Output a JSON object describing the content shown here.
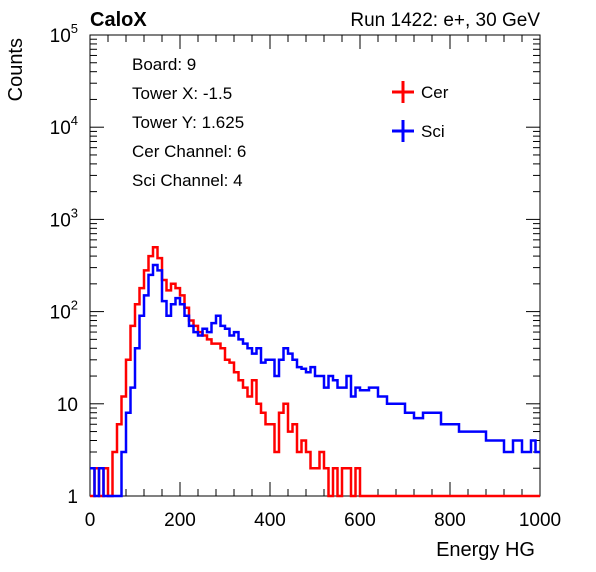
{
  "header": {
    "brand": "CaloX",
    "run": "Run 1422: e+, 30 GeV"
  },
  "info": {
    "lines": [
      "Board: 9",
      "Tower X: -1.5",
      "Tower Y: 1.625",
      "Cer Channel: 6",
      "Sci Channel: 4"
    ]
  },
  "chart_data": {
    "type": "line",
    "xlabel": "Energy HG",
    "ylabel": "Counts",
    "xlim": [
      0,
      1000
    ],
    "ylim": [
      1,
      100000
    ],
    "ylog": true,
    "grid": false,
    "legend_position": "top-right",
    "x_ticks": [
      "0",
      "200",
      "400",
      "600",
      "800",
      "1000"
    ],
    "y_ticks": [
      {
        "value": 1,
        "base": "1",
        "exp": ""
      },
      {
        "value": 10,
        "base": "10",
        "exp": ""
      },
      {
        "value": 100,
        "base": "10",
        "exp": "2"
      },
      {
        "value": 1000,
        "base": "10",
        "exp": "3"
      },
      {
        "value": 10000,
        "base": "10",
        "exp": "4"
      },
      {
        "value": 100000,
        "base": "10",
        "exp": "5"
      }
    ],
    "series": [
      {
        "name": "Cer",
        "color": "#ff0000",
        "x": [
          0,
          10,
          20,
          30,
          40,
          50,
          60,
          70,
          80,
          90,
          100,
          110,
          120,
          130,
          140,
          150,
          160,
          170,
          180,
          190,
          200,
          210,
          220,
          230,
          240,
          250,
          260,
          270,
          280,
          290,
          300,
          310,
          320,
          330,
          340,
          350,
          360,
          370,
          380,
          390,
          400,
          410,
          420,
          430,
          440,
          450,
          460,
          470,
          480,
          490,
          500,
          510,
          520,
          530,
          540,
          550,
          560,
          570,
          580,
          590,
          600,
          620,
          640,
          660,
          680,
          700,
          720,
          740,
          760,
          780,
          800,
          820,
          840,
          860,
          880,
          900,
          920,
          940,
          960,
          980,
          990
        ],
        "y": [
          1,
          2,
          1,
          2,
          1,
          3,
          6,
          12,
          30,
          70,
          120,
          180,
          280,
          400,
          500,
          380,
          220,
          170,
          200,
          180,
          150,
          110,
          80,
          70,
          60,
          55,
          50,
          45,
          45,
          40,
          30,
          28,
          22,
          18,
          15,
          12,
          18,
          10,
          8,
          6,
          6,
          3,
          8,
          10,
          5,
          6,
          3,
          4,
          3,
          2,
          2,
          3,
          2,
          1,
          2,
          1,
          2,
          2,
          1,
          2,
          1,
          1,
          1,
          1,
          1,
          1,
          1,
          1,
          1,
          1,
          1,
          1,
          1,
          1,
          1,
          1,
          1,
          1,
          1,
          1,
          1
        ]
      },
      {
        "name": "Sci",
        "color": "#0000ff",
        "x": [
          0,
          10,
          20,
          30,
          40,
          50,
          60,
          70,
          80,
          90,
          100,
          110,
          120,
          130,
          140,
          150,
          160,
          170,
          180,
          190,
          200,
          210,
          220,
          230,
          240,
          250,
          260,
          270,
          280,
          290,
          300,
          310,
          320,
          330,
          340,
          350,
          360,
          370,
          380,
          390,
          400,
          410,
          420,
          430,
          440,
          450,
          460,
          470,
          480,
          490,
          500,
          510,
          520,
          530,
          540,
          550,
          560,
          570,
          580,
          590,
          600,
          620,
          640,
          660,
          680,
          700,
          720,
          740,
          760,
          780,
          800,
          820,
          840,
          860,
          880,
          900,
          920,
          940,
          960,
          980,
          990
        ],
        "y": [
          2,
          1,
          2,
          1,
          1,
          1,
          1,
          3,
          8,
          15,
          40,
          90,
          150,
          250,
          320,
          280,
          130,
          90,
          120,
          140,
          120,
          90,
          70,
          60,
          55,
          65,
          60,
          75,
          90,
          70,
          65,
          55,
          60,
          50,
          45,
          40,
          35,
          40,
          28,
          30,
          30,
          20,
          30,
          40,
          35,
          30,
          25,
          24,
          22,
          25,
          20,
          20,
          15,
          20,
          18,
          15,
          15,
          20,
          12,
          15,
          14,
          15,
          12,
          10,
          10,
          8,
          7,
          8,
          8,
          6,
          6,
          5,
          5,
          5,
          4,
          4,
          3,
          4,
          3,
          4,
          3
        ]
      }
    ]
  }
}
